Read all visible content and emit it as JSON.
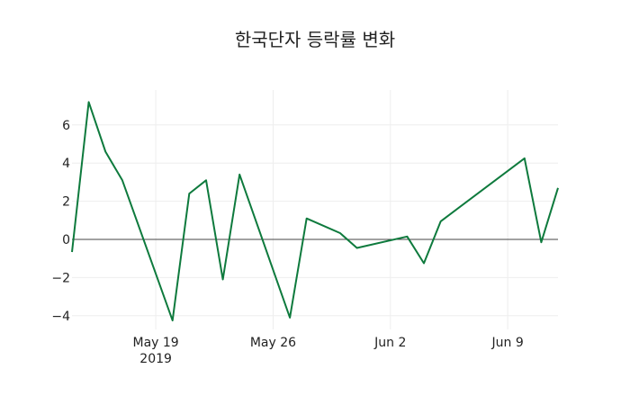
{
  "title": "한국단자 등락률 변화",
  "chart_data": {
    "type": "line",
    "title": "한국단자 등락률 변화",
    "xlabel": "",
    "ylabel": "",
    "x": [
      "2019-05-14",
      "2019-05-15",
      "2019-05-16",
      "2019-05-17",
      "2019-05-20",
      "2019-05-21",
      "2019-05-22",
      "2019-05-23",
      "2019-05-24",
      "2019-05-27",
      "2019-05-28",
      "2019-05-30",
      "2019-05-31",
      "2019-06-03",
      "2019-06-04",
      "2019-06-05",
      "2019-06-10",
      "2019-06-11",
      "2019-06-12"
    ],
    "series": [
      {
        "name": "등락률",
        "color": "#0e7a3d",
        "values": [
          -0.66,
          7.2,
          4.6,
          3.1,
          -4.25,
          2.4,
          3.1,
          -2.1,
          3.4,
          -4.1,
          1.1,
          0.33,
          -0.45,
          0.15,
          -1.25,
          0.95,
          4.25,
          -0.15,
          2.7
        ]
      }
    ],
    "xlim": [
      "2019-05-14",
      "2019-06-12"
    ],
    "ylim": [
      -4.55,
      7.75
    ],
    "x_ticks": [
      {
        "date": "2019-05-19",
        "label": "May 19",
        "sublabel": "2019"
      },
      {
        "date": "2019-05-26",
        "label": "May 26"
      },
      {
        "date": "2019-06-02",
        "label": "Jun 2"
      },
      {
        "date": "2019-06-09",
        "label": "Jun 9"
      }
    ],
    "y_ticks": [
      -4,
      -2,
      0,
      2,
      4,
      6
    ],
    "y_tick_labels": [
      "−4",
      "−2",
      "0",
      "2",
      "4",
      "6"
    ],
    "grid": true,
    "zero_line": true,
    "legend": false
  }
}
